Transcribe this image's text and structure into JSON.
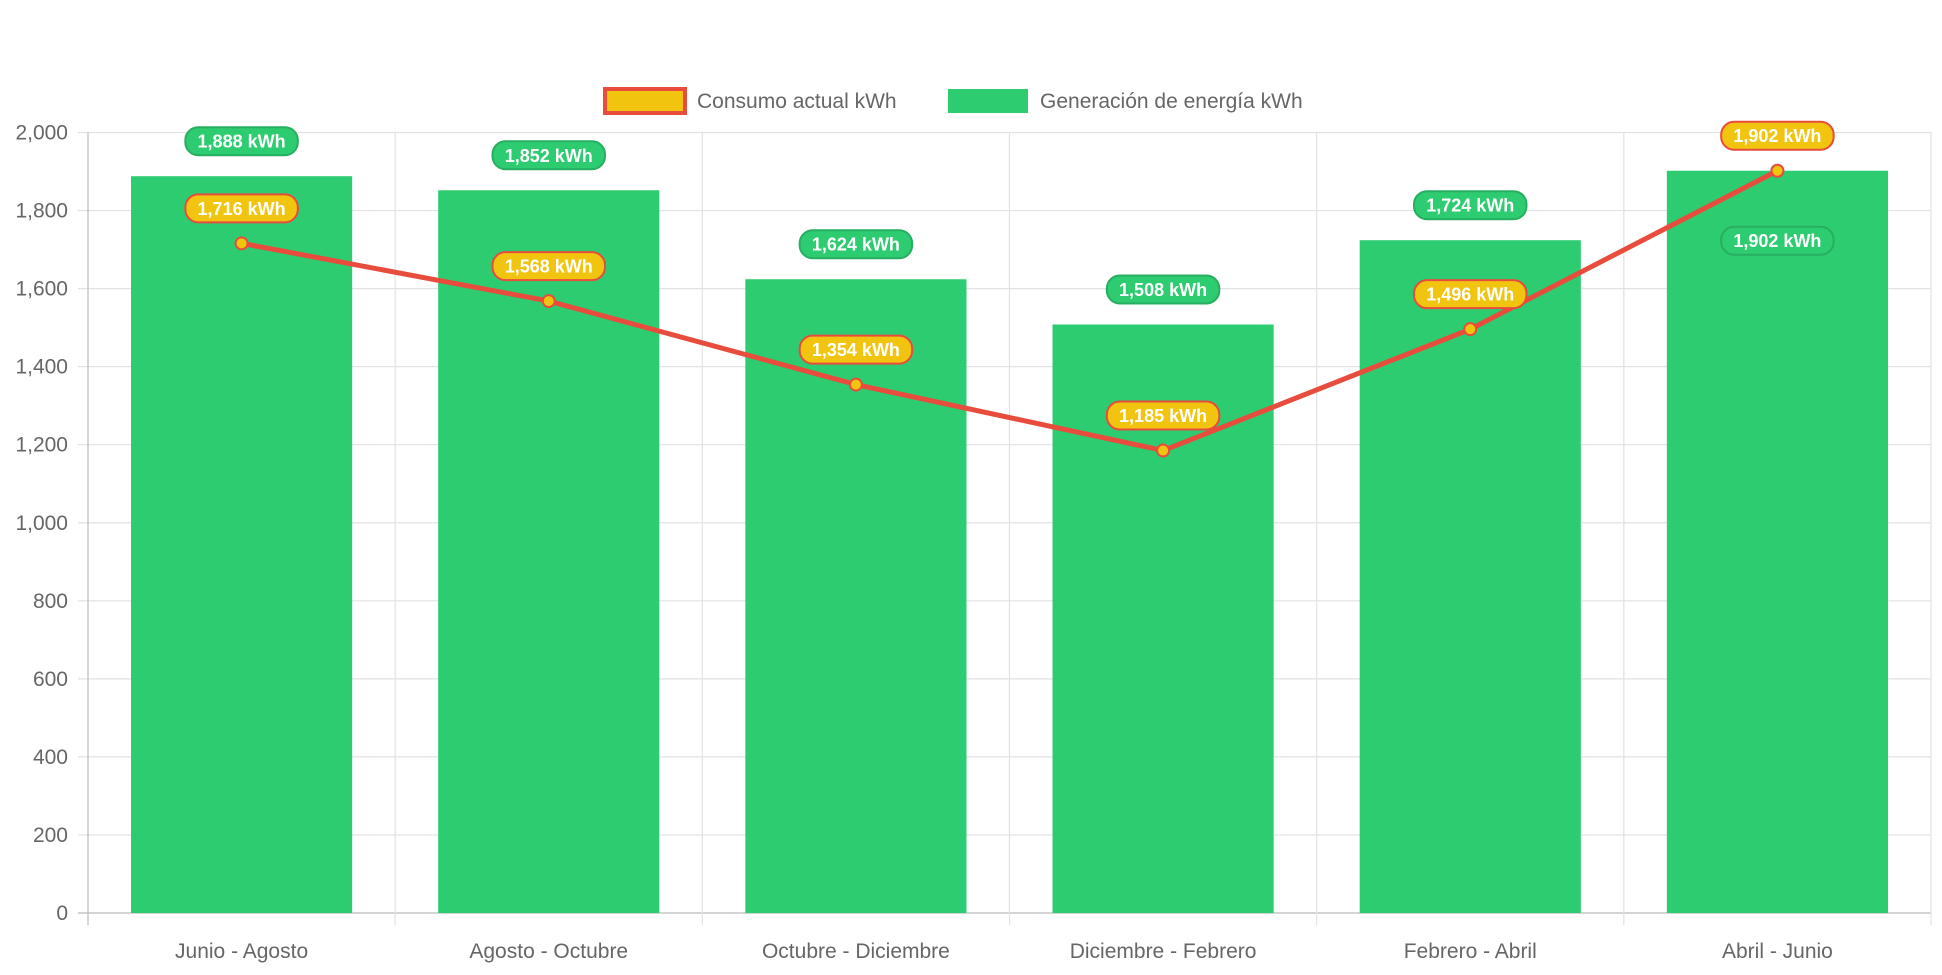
{
  "chart_data": {
    "type": "bar",
    "categories": [
      "Junio - Agosto",
      "Agosto - Octubre",
      "Octubre - Diciembre",
      "Diciembre - Febrero",
      "Febrero - Abril",
      "Abril - Junio"
    ],
    "series": [
      {
        "name": "Consumo actual kWh",
        "type": "line",
        "values": [
          1716,
          1568,
          1354,
          1185,
          1496,
          1902
        ],
        "labels": [
          "1,716 kWh",
          "1,568 kWh",
          "1,354 kWh",
          "1,185 kWh",
          "1,496 kWh",
          "1,902 kWh"
        ],
        "color": "#e74c3c",
        "fill": "#f1c40f"
      },
      {
        "name": "Generación de energía kWh",
        "type": "bar",
        "values": [
          1888,
          1852,
          1624,
          1508,
          1724,
          1902
        ],
        "labels": [
          "1,888 kWh",
          "1,852 kWh",
          "1,624 kWh",
          "1,508 kWh",
          "1,724 kWh",
          "1,902 kWh"
        ],
        "color": "#2ecc71"
      }
    ],
    "ylim": [
      0,
      2000
    ],
    "yticks": [
      "0",
      "200",
      "400",
      "600",
      "800",
      "1,000",
      "1,200",
      "1,400",
      "1,600",
      "1,800",
      "2,000"
    ],
    "grid": true,
    "legend": "top"
  }
}
